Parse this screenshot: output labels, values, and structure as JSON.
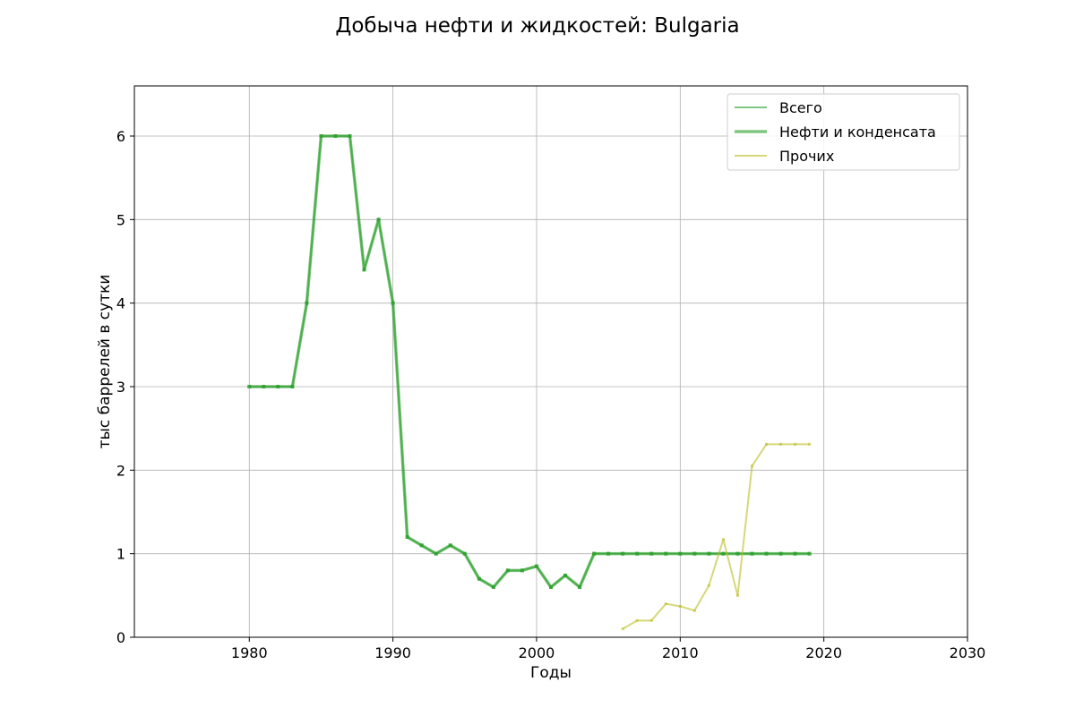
{
  "chart_data": {
    "type": "line",
    "title": "Добыча нефти и жидкостей: Bulgaria",
    "xlabel": "Годы",
    "ylabel": "тыс баррелей в сутки",
    "xlim": [
      1972,
      2030
    ],
    "ylim": [
      0,
      6.6
    ],
    "xticks": [
      1980,
      1990,
      2000,
      2010,
      2020,
      2030
    ],
    "yticks": [
      0,
      1,
      2,
      3,
      4,
      5,
      6
    ],
    "grid": true,
    "legend_position": "top-right",
    "series": [
      {
        "name": "Всего",
        "color": "#2ca02c",
        "x": [
          1980,
          1981,
          1982,
          1983,
          1984,
          1985,
          1986,
          1987,
          1988,
          1989,
          1990,
          1991,
          1992,
          1993,
          1994,
          1995,
          1996,
          1997,
          1998,
          1999,
          2000,
          2001,
          2002,
          2003,
          2004,
          2005,
          2006,
          2007,
          2008,
          2009,
          2010,
          2011,
          2012,
          2013,
          2014,
          2015,
          2016,
          2017,
          2018,
          2019
        ],
        "values": [
          3.0,
          3.0,
          3.0,
          3.0,
          4.0,
          6.0,
          6.0,
          6.0,
          4.4,
          5.0,
          4.0,
          1.2,
          1.1,
          1.0,
          1.1,
          1.0,
          0.7,
          0.6,
          0.8,
          0.8,
          0.85,
          0.6,
          0.74,
          0.6,
          1.0,
          1.0,
          1.0,
          1.0,
          1.0,
          1.0,
          1.0,
          1.0,
          1.0,
          1.0,
          1.0,
          1.0,
          1.0,
          1.0,
          1.0,
          1.0
        ]
      },
      {
        "name": "Нефти и конденсата",
        "color": "#2ca02c",
        "x": [
          1980,
          1981,
          1982,
          1983,
          1984,
          1985,
          1986,
          1987,
          1988,
          1989,
          1990,
          1991,
          1992,
          1993,
          1994,
          1995,
          1996,
          1997,
          1998,
          1999,
          2000,
          2001,
          2002,
          2003,
          2004,
          2005,
          2006,
          2007,
          2008,
          2009,
          2010,
          2011,
          2012,
          2013,
          2014,
          2015,
          2016,
          2017,
          2018,
          2019
        ],
        "values": [
          3.0,
          3.0,
          3.0,
          3.0,
          4.0,
          6.0,
          6.0,
          6.0,
          4.4,
          5.0,
          4.0,
          1.2,
          1.1,
          1.0,
          1.1,
          1.0,
          0.7,
          0.6,
          0.8,
          0.8,
          0.85,
          0.6,
          0.74,
          0.6,
          1.0,
          1.0,
          1.0,
          1.0,
          1.0,
          1.0,
          1.0,
          1.0,
          1.0,
          1.0,
          1.0,
          1.0,
          1.0,
          1.0,
          1.0,
          1.0
        ]
      },
      {
        "name": "Прочих",
        "color": "#bcbd22",
        "x": [
          2006,
          2007,
          2008,
          2009,
          2010,
          2011,
          2012,
          2013,
          2014,
          2015,
          2016,
          2017,
          2018,
          2019
        ],
        "values": [
          0.1,
          0.2,
          0.2,
          0.4,
          0.37,
          0.32,
          0.62,
          1.17,
          0.5,
          2.05,
          2.31,
          2.31,
          2.31,
          2.31
        ]
      }
    ]
  }
}
